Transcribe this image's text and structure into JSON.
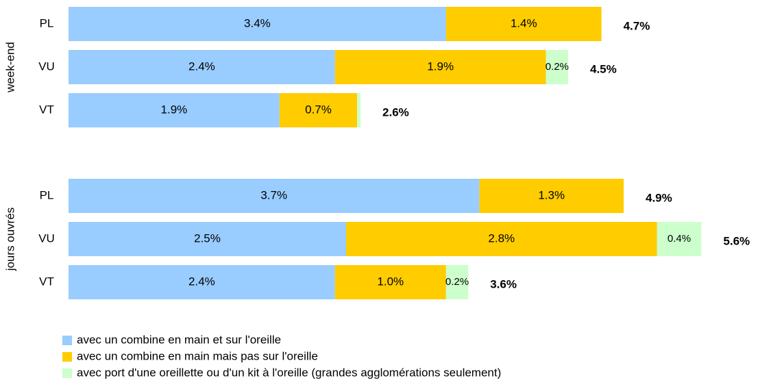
{
  "chart_data": {
    "type": "bar",
    "orientation": "horizontal",
    "stacked": true,
    "groups": [
      "week-end",
      "jours ouvrés"
    ],
    "categories": [
      "PL",
      "VU",
      "VT",
      "PL",
      "VU",
      "VT"
    ],
    "series": [
      {
        "name": "avec un combine en main et sur l'oreille",
        "color": "#99ccff",
        "values": [
          3.4,
          2.4,
          1.9,
          3.7,
          2.5,
          2.4
        ],
        "value_labels": [
          "3.4%",
          "2.4%",
          "1.9%",
          "3.7%",
          "2.5%",
          "2.4%"
        ]
      },
      {
        "name": "avec un combine en main mais pas sur l'oreille",
        "color": "#ffcc00",
        "values": [
          1.4,
          1.9,
          0.7,
          1.3,
          2.8,
          1.0
        ],
        "value_labels": [
          "1.4%",
          "1.9%",
          "0.7%",
          "1.3%",
          "2.8%",
          "1.0%"
        ]
      },
      {
        "name": "avec port d'une oreillette ou d'un kit à l'oreille (grandes agglomérations seulement)",
        "color": "#ccffcc",
        "values": [
          0,
          0.2,
          0.03,
          0,
          0.4,
          0.2
        ],
        "value_labels": [
          null,
          "0.2%",
          null,
          null,
          "0.4%",
          "0.2%"
        ]
      }
    ],
    "totals": [
      4.7,
      4.5,
      2.6,
      4.9,
      5.6,
      3.6
    ],
    "total_labels": [
      "4.7%",
      "4.5%",
      "2.6%",
      "4.9%",
      "5.6%",
      "3.6%"
    ],
    "xlim": [
      0,
      6.0
    ]
  }
}
